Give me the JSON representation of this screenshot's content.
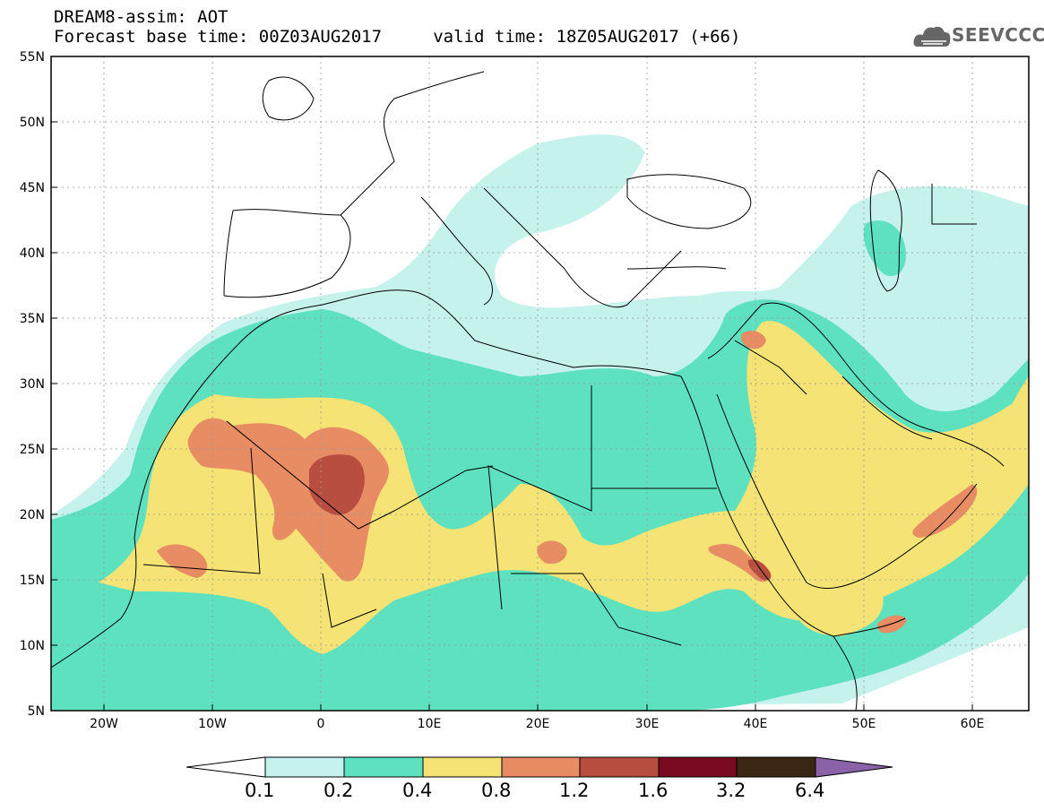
{
  "header": {
    "title_line1": "DREAM8-assim: AOT",
    "title_line2": "Forecast base time: 00Z03AUG2017     valid time: 18Z05AUG2017 (+66)",
    "logo_text": "SEEVCCC"
  },
  "map": {
    "lat_labels": [
      "55N",
      "50N",
      "45N",
      "40N",
      "35N",
      "30N",
      "25N",
      "20N",
      "15N",
      "10N",
      "5N"
    ],
    "lon_labels": [
      "20W",
      "10W",
      "0",
      "10E",
      "20E",
      "30E",
      "40E",
      "50E",
      "60E"
    ]
  },
  "colorbar": {
    "levels": [
      "0.1",
      "0.2",
      "0.4",
      "0.8",
      "1.2",
      "1.6",
      "3.2",
      "6.4"
    ],
    "colors": [
      "#c6f2ec",
      "#5ee1bf",
      "#f5e375",
      "#e88c64",
      "#b84e3f",
      "#7a0a22",
      "#3b2614",
      "#8a62a8"
    ],
    "below_color": "#ffffff"
  },
  "colors": {
    "land_outline": "#000000",
    "grid": "#999999"
  }
}
